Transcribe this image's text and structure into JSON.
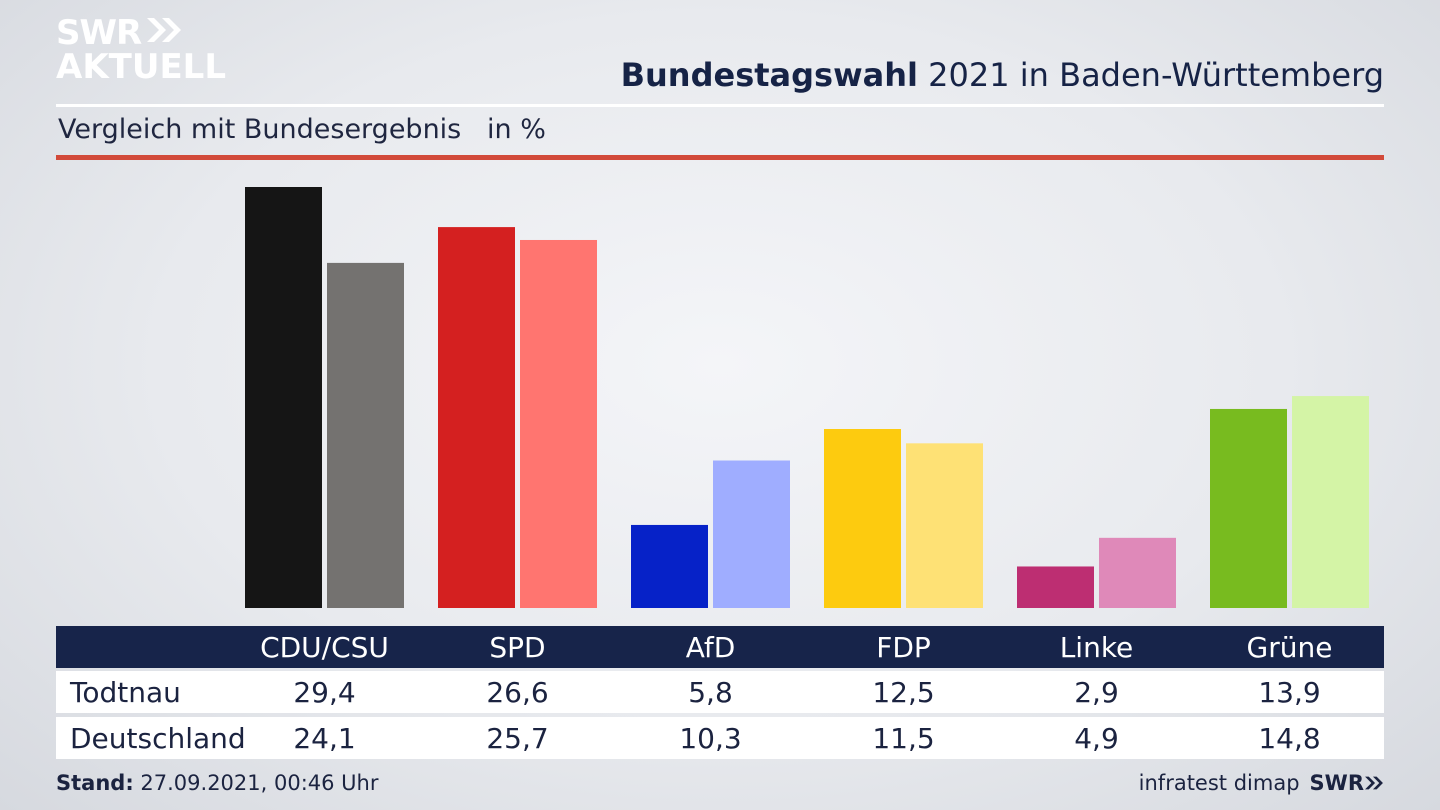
{
  "logo": {
    "line1": "SWR",
    "line2": "AKTUELL"
  },
  "header": {
    "title_bold": "Bundestagswahl",
    "title_rest": " 2021 in Baden-Württemberg",
    "subtitle": "Vergleich mit Bundesergebnis   in %"
  },
  "table": {
    "rows": [
      {
        "label": "Todtnau"
      },
      {
        "label": "Deutschland"
      }
    ]
  },
  "footer": {
    "stand_label": "Stand:",
    "stand_value": " 27.09.2021, 00:46 Uhr",
    "source": "infratest dimap",
    "brand": "SWR"
  },
  "chart_data": {
    "type": "bar",
    "categories": [
      "CDU/CSU",
      "SPD",
      "AfD",
      "FDP",
      "Linke",
      "Grüne"
    ],
    "series": [
      {
        "name": "Todtnau",
        "values": [
          29.4,
          26.6,
          5.8,
          12.5,
          2.9,
          13.9
        ],
        "value_labels": [
          "29,4",
          "26,6",
          "5,8",
          "12,5",
          "2,9",
          "13,9"
        ]
      },
      {
        "name": "Deutschland",
        "values": [
          24.1,
          25.7,
          10.3,
          11.5,
          4.9,
          14.8
        ],
        "value_labels": [
          "24,1",
          "25,7",
          "10,3",
          "11,5",
          "4,9",
          "14,8"
        ]
      }
    ],
    "colors": {
      "Todtnau": [
        "#151515",
        "#d42020",
        "#0622c8",
        "#fdcb0f",
        "#bd2e72",
        "#78bb1f"
      ],
      "Deutschland": [
        "#747270",
        "#ff7570",
        "#9fadff",
        "#fee175",
        "#df89b9",
        "#d4f4a6"
      ]
    },
    "ylim": [
      0,
      30
    ],
    "grid": false
  }
}
